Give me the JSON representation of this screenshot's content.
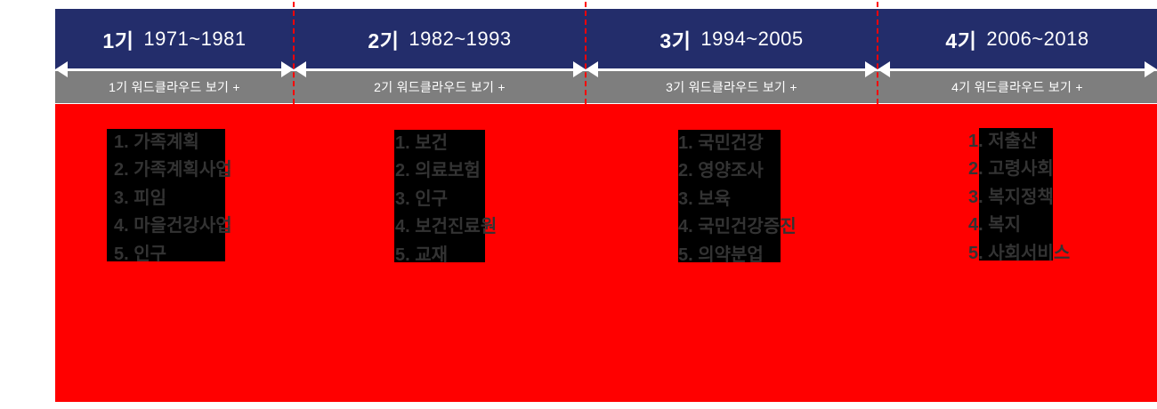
{
  "colors": {
    "navy_header": "#232d6b",
    "gray_button": "#7e7e7e",
    "content_red": "#ff0000",
    "divider_red": "#ff0000",
    "keyword_box": "#000000",
    "keyword_text": "#333333",
    "arrow_white": "#ffffff"
  },
  "periods": [
    {
      "label": "1기",
      "range": "1971~1981",
      "wordcloud_button": "1기 워드클라우드 보기 +",
      "keywords": [
        "1. 가족계획",
        "2. 가족계획사업",
        "3. 피임",
        "4. 마을건강사업",
        "5. 인구"
      ]
    },
    {
      "label": "2기",
      "range": "1982~1993",
      "wordcloud_button": "2기 워드클라우드 보기 +",
      "keywords": [
        "1. 보건",
        "2. 의료보험",
        "3. 인구",
        "4. 보건진료원",
        "5. 교재"
      ]
    },
    {
      "label": "3기",
      "range": "1994~2005",
      "wordcloud_button": "3기 워드클라우드 보기 +",
      "keywords": [
        "1. 국민건강",
        "2. 영양조사",
        "3. 보육",
        "4. 국민건강증진",
        "5. 의약분업"
      ]
    },
    {
      "label": "4기",
      "range": "2006~2018",
      "wordcloud_button": "4기 워드클라우드 보기 +",
      "keywords": [
        "1. 저출산",
        "2. 고령사회",
        "3. 복지정책",
        "4. 복지",
        "5. 사회서비스"
      ]
    }
  ]
}
